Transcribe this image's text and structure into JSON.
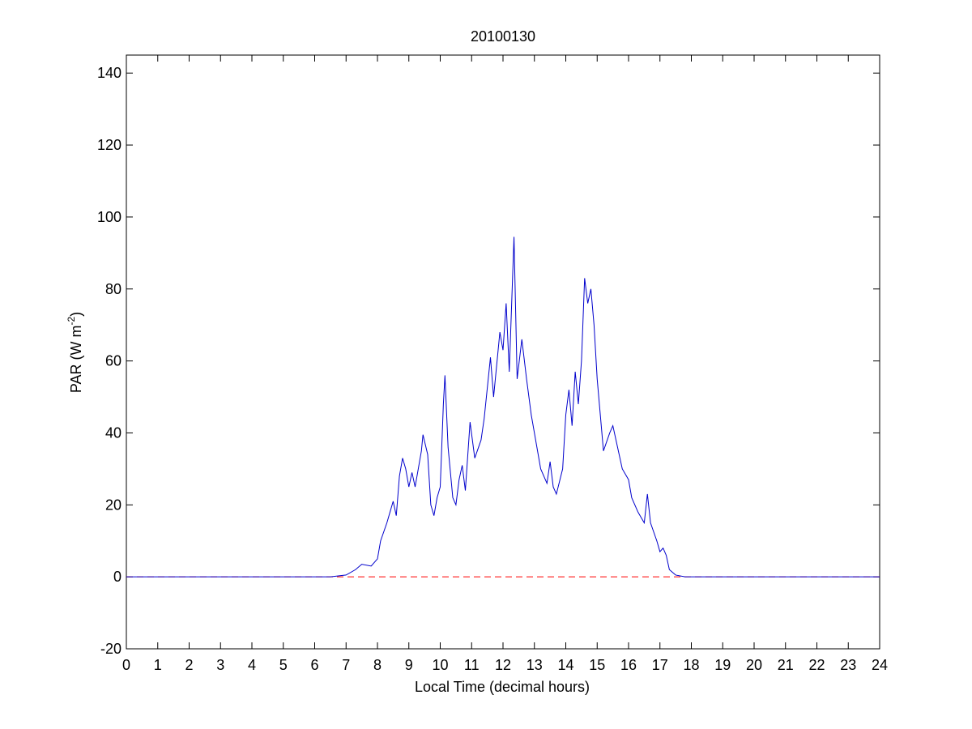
{
  "chart_data": {
    "type": "line",
    "title": "20100130",
    "x_label": "Local Time (decimal hours)",
    "y_label": {
      "text": "PAR (W m",
      "superscript": "-2",
      "suffix": ")"
    },
    "x": [
      0,
      6.5,
      7,
      7.3,
      7.5,
      7.8,
      8,
      8.1,
      8.3,
      8.4,
      8.5,
      8.6,
      8.7,
      8.8,
      8.9,
      9,
      9.1,
      9.2,
      9.4,
      9.45,
      9.6,
      9.7,
      9.8,
      9.9,
      10,
      10.1,
      10.15,
      10.25,
      10.4,
      10.5,
      10.6,
      10.7,
      10.8,
      10.95,
      11.1,
      11.3,
      11.4,
      11.6,
      11.7,
      11.9,
      12,
      12.1,
      12.2,
      12.35,
      12.45,
      12.6,
      12.75,
      12.9,
      13,
      13.2,
      13.4,
      13.5,
      13.6,
      13.7,
      13.9,
      14,
      14.1,
      14.2,
      14.3,
      14.4,
      14.5,
      14.6,
      14.7,
      14.8,
      14.9,
      15,
      15.1,
      15.2,
      15.4,
      15.5,
      15.6,
      15.8,
      16,
      16.1,
      16.3,
      16.5,
      16.6,
      16.7,
      16.9,
      17,
      17.1,
      17.2,
      17.3,
      17.5,
      17.8,
      24
    ],
    "series": [
      {
        "color": "#0000cc",
        "values": [
          0,
          0,
          0.5,
          2,
          3.5,
          3,
          5,
          10,
          15,
          18,
          21,
          17,
          28,
          33,
          30,
          25,
          29,
          25,
          35,
          39.5,
          34,
          20,
          17,
          22,
          25,
          48,
          56,
          36,
          22,
          20,
          27,
          31,
          24,
          43,
          33,
          38,
          44,
          61,
          50,
          68,
          63,
          76,
          57,
          94.5,
          55,
          66,
          55,
          45,
          40,
          30,
          26,
          32,
          25,
          23,
          30,
          45,
          52,
          42,
          57,
          48,
          60,
          83,
          76,
          80,
          70,
          55,
          45,
          35,
          40,
          42,
          38,
          30,
          27,
          22,
          18,
          15,
          23,
          15,
          10,
          7,
          8,
          6,
          2,
          0.5,
          0,
          0
        ]
      }
    ],
    "reference_line": {
      "y": 0,
      "color": "#ff0000",
      "style": "dashed"
    },
    "xlim": [
      0,
      24
    ],
    "xticks": [
      0,
      1,
      2,
      3,
      4,
      5,
      6,
      7,
      8,
      9,
      10,
      11,
      12,
      13,
      14,
      15,
      16,
      17,
      18,
      19,
      20,
      21,
      22,
      23,
      24
    ],
    "ylim": [
      -20,
      145
    ],
    "yticks": [
      -20,
      0,
      20,
      40,
      60,
      80,
      100,
      120,
      140
    ]
  }
}
